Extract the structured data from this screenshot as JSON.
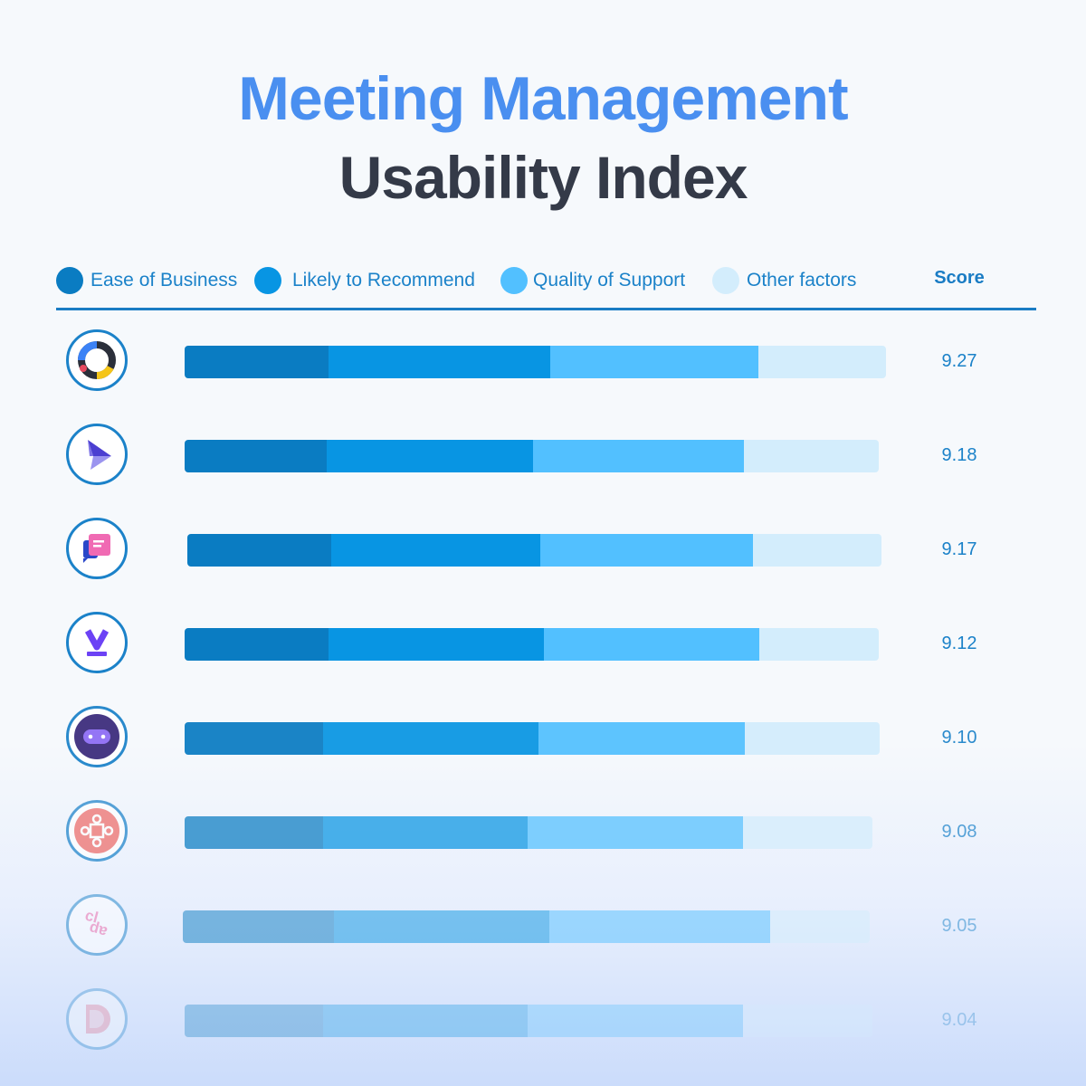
{
  "title": {
    "line1": "Meeting Management",
    "line2": "Usability Index"
  },
  "colors": {
    "title_accent": "#4a8ff0",
    "title_dark": "#343a48",
    "ease": "#0a7cc2",
    "recommend": "#0895e3",
    "support": "#52c0ff",
    "other": "#d3edfc"
  },
  "legend": {
    "items": [
      {
        "label": "Ease of Business",
        "color": "#0a7cc2"
      },
      {
        "label": "Likely to Recommend",
        "color": "#0895e3"
      },
      {
        "label": "Quality of Support",
        "color": "#52c0ff"
      },
      {
        "label": "Other factors",
        "color": "#d3edfc"
      }
    ],
    "score_header": "Score"
  },
  "chart_data": {
    "type": "bar",
    "stacked": true,
    "orientation": "horizontal",
    "title": "Meeting Management Usability Index",
    "categories": [
      "Logo 1",
      "Logo 2",
      "Logo 3",
      "Logo 4",
      "Logo 5",
      "Logo 6",
      "Logo 7",
      "Logo 8"
    ],
    "scores": [
      "9.27",
      "9.18",
      "9.17",
      "9.12",
      "9.10",
      "9.08",
      "9.05",
      "9.04"
    ],
    "xlim": [
      0,
      10
    ],
    "series": [
      {
        "name": "Ease of Business",
        "values": [
          2.05,
          2.02,
          2.05,
          2.05,
          1.97,
          1.97,
          2.16,
          1.97
        ]
      },
      {
        "name": "Likely to Recommend",
        "values": [
          3.16,
          2.95,
          2.98,
          3.07,
          3.07,
          2.92,
          3.07,
          2.92
        ]
      },
      {
        "name": "Quality of Support",
        "values": [
          2.97,
          3.01,
          3.04,
          3.07,
          2.95,
          3.07,
          3.14,
          3.07
        ]
      },
      {
        "name": "Other factors",
        "values": [
          1.82,
          1.92,
          1.83,
          1.71,
          1.92,
          1.84,
          1.42,
          1.84
        ]
      }
    ],
    "logos": [
      "ring-logo-icon",
      "paper-plane-logo-icon",
      "chat-cards-logo-icon",
      "v-chevron-logo-icon",
      "robot-face-logo-icon",
      "connected-nodes-logo-icon",
      "clap-text-logo-icon",
      "d-letter-logo-icon"
    ],
    "grid": false,
    "legend_position": "top"
  }
}
